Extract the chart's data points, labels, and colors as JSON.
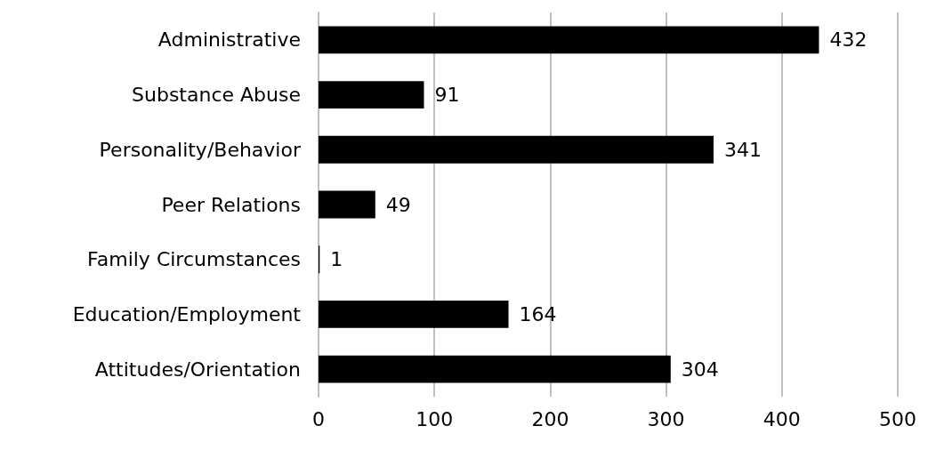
{
  "chart_data": {
    "type": "bar",
    "orientation": "horizontal",
    "categories": [
      "Administrative",
      "Substance Abuse",
      "Personality/Behavior",
      "Peer Relations",
      "Family Circumstances",
      "Education/Employment",
      "Attitudes/Orientation"
    ],
    "values": [
      432,
      91,
      341,
      49,
      1,
      164,
      304
    ],
    "color": "#000000",
    "xlim": [
      0,
      500
    ],
    "xticks": [
      0,
      100,
      200,
      300,
      400,
      500
    ],
    "grid": "x",
    "data_labels": true
  }
}
